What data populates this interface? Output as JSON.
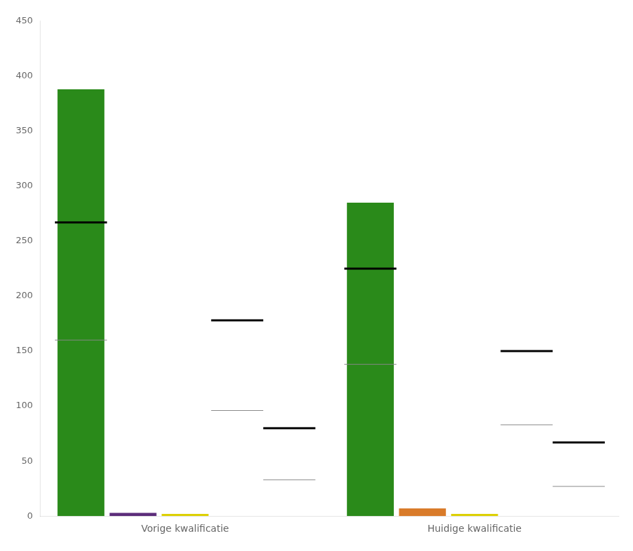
{
  "chart_data": {
    "type": "bar",
    "categories": [
      "Vorige kwalificatie",
      "Huidige kwalificatie"
    ],
    "series": [
      {
        "color": "#2a8a1a",
        "values": [
          388,
          285
        ],
        "thick_line": [
          267,
          225
        ],
        "thin_line": [
          160,
          138
        ]
      },
      {
        "colors": [
          "#5c2d7a",
          "#d97b2a"
        ],
        "values": [
          3,
          7
        ]
      },
      {
        "color": "#ddd000",
        "values": [
          2,
          2
        ]
      },
      {
        "color": "#ffffff",
        "values": [
          0,
          0
        ],
        "thick_line": [
          178,
          150
        ],
        "thin_line": [
          96,
          83
        ]
      },
      {
        "color": "#ffffff",
        "values": [
          0,
          0
        ],
        "thick_line": [
          80,
          67
        ],
        "thin_line": [
          33,
          27
        ]
      }
    ],
    "ylim": [
      0,
      450
    ],
    "yticks": [
      0,
      50,
      100,
      150,
      200,
      250,
      300,
      350,
      400,
      450
    ],
    "grid": false
  }
}
